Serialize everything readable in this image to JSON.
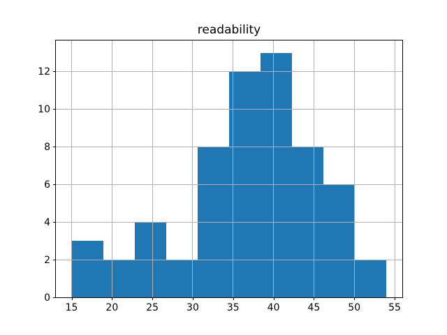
{
  "chart_data": {
    "type": "histogram",
    "title": "readability",
    "xlabel": "",
    "ylabel": "",
    "bin_edges": [
      15.0,
      18.9,
      22.8,
      26.7,
      30.6,
      34.5,
      38.4,
      42.3,
      46.2,
      50.1,
      54.0
    ],
    "counts": [
      3,
      2,
      4,
      2,
      8,
      12,
      13,
      8,
      6,
      2
    ],
    "xlim": [
      13.05,
      55.95
    ],
    "ylim": [
      0,
      13.65
    ],
    "xticks": [
      15,
      20,
      25,
      30,
      35,
      40,
      45,
      50,
      55
    ],
    "yticks": [
      0,
      2,
      4,
      6,
      8,
      10,
      12
    ],
    "grid": true,
    "legend": null,
    "colors": {
      "bar": "#1f77b4",
      "grid": "#b0b0b0",
      "spine": "#000000",
      "background": "#ffffff",
      "text": "#000000"
    }
  }
}
